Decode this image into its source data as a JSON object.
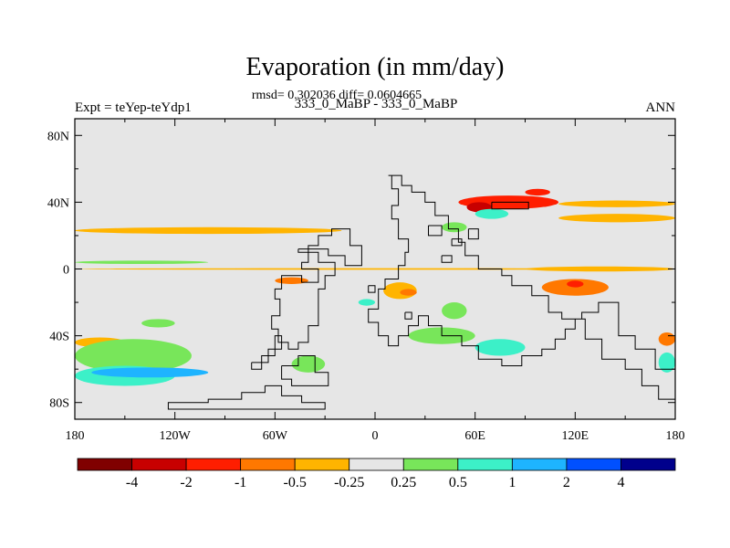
{
  "chart_data": {
    "type": "heatmap",
    "title": "Evaporation (in mm/day)",
    "stats_line": "rmsd= 0.302036 diff= 0.0604665",
    "subtitle_left": "Expt = teYep-teYdp1",
    "subtitle_center": "333_0_MaBP - 333_0_MaBP",
    "subtitle_right": "ANN",
    "x_range": [
      -180,
      180
    ],
    "y_range": [
      -90,
      90
    ],
    "x_ticks": [
      {
        "value": -180,
        "label": "180"
      },
      {
        "value": -120,
        "label": "120W"
      },
      {
        "value": -60,
        "label": "60W"
      },
      {
        "value": 0,
        "label": "0"
      },
      {
        "value": 60,
        "label": "60E"
      },
      {
        "value": 120,
        "label": "120E"
      },
      {
        "value": 180,
        "label": "180"
      }
    ],
    "y_ticks": [
      {
        "value": 80,
        "label": "80N"
      },
      {
        "value": 40,
        "label": "40N"
      },
      {
        "value": 0,
        "label": "0"
      },
      {
        "value": -40,
        "label": "40S"
      },
      {
        "value": -80,
        "label": "80S"
      }
    ],
    "background_color": "#e6e6e6",
    "colorbar": {
      "colors": [
        "#800000",
        "#c80000",
        "#ff1e00",
        "#ff7800",
        "#ffb400",
        "#e6e6e6",
        "#78e65a",
        "#3cf0c8",
        "#1eb4ff",
        "#0050ff",
        "#00008c"
      ],
      "labels": [
        "-4",
        "-2",
        "-1",
        "-0.5",
        "-0.25",
        "0.25",
        "0.5",
        "1",
        "2",
        "4"
      ]
    },
    "anomalies": [
      {
        "lon": [
          -180,
          -20
        ],
        "lat": [
          21,
          25
        ],
        "level": -0.3
      },
      {
        "lon": [
          -180,
          -100
        ],
        "lat": [
          3,
          5
        ],
        "level": 0.3
      },
      {
        "lon": [
          -180,
          180
        ],
        "lat": [
          -0.5,
          0.5
        ],
        "level": -0.4
      },
      {
        "lon": [
          90,
          180
        ],
        "lat": [
          -1.5,
          1.5
        ],
        "level": -0.3
      },
      {
        "lon": [
          50,
          110
        ],
        "lat": [
          36,
          44
        ],
        "level": -1.2
      },
      {
        "lon": [
          55,
          70
        ],
        "lat": [
          34,
          40
        ],
        "level": -2.5
      },
      {
        "lon": [
          90,
          105
        ],
        "lat": [
          44,
          48
        ],
        "level": -1.5
      },
      {
        "lon": [
          110,
          180
        ],
        "lat": [
          37,
          41
        ],
        "level": -0.35
      },
      {
        "lon": [
          110,
          180
        ],
        "lat": [
          28,
          33
        ],
        "level": -0.3
      },
      {
        "lon": [
          100,
          140
        ],
        "lat": [
          -16,
          -6
        ],
        "level": -0.6
      },
      {
        "lon": [
          115,
          125
        ],
        "lat": [
          -11,
          -7
        ],
        "level": -1.5
      },
      {
        "lon": [
          5,
          25
        ],
        "lat": [
          -18,
          -8
        ],
        "level": -0.5
      },
      {
        "lon": [
          15,
          25
        ],
        "lat": [
          -16,
          -12
        ],
        "level": -1.0
      },
      {
        "lon": [
          -60,
          -40
        ],
        "lat": [
          -9,
          -5
        ],
        "level": -0.8
      },
      {
        "lon": [
          -180,
          -150
        ],
        "lat": [
          -47,
          -41
        ],
        "level": -0.5
      },
      {
        "lon": [
          170,
          180
        ],
        "lat": [
          -46,
          -38
        ],
        "level": -0.6
      },
      {
        "lon": [
          -180,
          -110
        ],
        "lat": [
          -62,
          -42
        ],
        "level": 0.4
      },
      {
        "lon": [
          -180,
          -120
        ],
        "lat": [
          -70,
          -58
        ],
        "level": 0.7
      },
      {
        "lon": [
          -170,
          -100
        ],
        "lat": [
          -65,
          -59
        ],
        "level": 1.3
      },
      {
        "lon": [
          -50,
          -30
        ],
        "lat": [
          -62,
          -52
        ],
        "level": 0.4
      },
      {
        "lon": [
          20,
          60
        ],
        "lat": [
          -45,
          -35
        ],
        "level": 0.4
      },
      {
        "lon": [
          60,
          90
        ],
        "lat": [
          -52,
          -42
        ],
        "level": 0.6
      },
      {
        "lon": [
          40,
          55
        ],
        "lat": [
          -30,
          -20
        ],
        "level": 0.4
      },
      {
        "lon": [
          170,
          180
        ],
        "lat": [
          -62,
          -50
        ],
        "level": 0.6
      },
      {
        "lon": [
          -140,
          -120
        ],
        "lat": [
          -35,
          -30
        ],
        "level": 0.3
      },
      {
        "lon": [
          60,
          80
        ],
        "lat": [
          30,
          36
        ],
        "level": 0.5
      },
      {
        "lon": [
          40,
          55
        ],
        "lat": [
          22,
          28
        ],
        "level": 0.4
      },
      {
        "lon": [
          -10,
          0
        ],
        "lat": [
          -22,
          -18
        ],
        "level": 0.5
      }
    ],
    "continent_outlines": [
      [
        [
          -46,
          12
        ],
        [
          -28,
          12
        ],
        [
          -28,
          8
        ],
        [
          -18,
          8
        ],
        [
          -18,
          2
        ],
        [
          -8,
          2
        ],
        [
          -8,
          14
        ],
        [
          -15,
          14
        ],
        [
          -15,
          24
        ],
        [
          -26,
          24
        ],
        [
          -26,
          20
        ],
        [
          -34,
          20
        ],
        [
          -34,
          14
        ],
        [
          -40,
          14
        ],
        [
          -40,
          4
        ],
        [
          -44,
          4
        ],
        [
          -44,
          0
        ],
        [
          -34,
          0
        ],
        [
          -34,
          -8
        ],
        [
          -44,
          -8
        ],
        [
          -44,
          -4
        ],
        [
          -56,
          -4
        ],
        [
          -56,
          -12
        ],
        [
          -60,
          -12
        ],
        [
          -60,
          -18
        ],
        [
          -57,
          -18
        ],
        [
          -57,
          -28
        ],
        [
          -62,
          -28
        ],
        [
          -62,
          -36
        ],
        [
          -58,
          -36
        ],
        [
          -58,
          -44
        ],
        [
          -52,
          -44
        ],
        [
          -52,
          -48
        ],
        [
          -46,
          -48
        ],
        [
          -46,
          -44
        ],
        [
          -40,
          -44
        ],
        [
          -40,
          -34
        ],
        [
          -34,
          -34
        ],
        [
          -34,
          -12
        ],
        [
          -30,
          -12
        ],
        [
          -30,
          -4
        ],
        [
          -24,
          -4
        ],
        [
          -24,
          4
        ],
        [
          -34,
          4
        ],
        [
          -34,
          10
        ],
        [
          -46,
          10
        ],
        [
          -46,
          12
        ]
      ],
      [
        [
          -56,
          -58
        ],
        [
          -46,
          -58
        ],
        [
          -46,
          -52
        ],
        [
          -36,
          -52
        ],
        [
          -36,
          -62
        ],
        [
          -28,
          -62
        ],
        [
          -28,
          -70
        ],
        [
          -50,
          -70
        ],
        [
          -50,
          -66
        ],
        [
          -56,
          -66
        ],
        [
          -56,
          -58
        ]
      ],
      [
        [
          -66,
          -70
        ],
        [
          -56,
          -70
        ],
        [
          -56,
          -76
        ],
        [
          -44,
          -76
        ],
        [
          -44,
          -80
        ],
        [
          -30,
          -80
        ],
        [
          -30,
          -84
        ],
        [
          -124,
          -84
        ],
        [
          -124,
          -80
        ],
        [
          -100,
          -80
        ],
        [
          -100,
          -78
        ],
        [
          -80,
          -78
        ],
        [
          -80,
          -74
        ],
        [
          -66,
          -74
        ],
        [
          -66,
          -70
        ]
      ],
      [
        [
          -74,
          -56
        ],
        [
          -64,
          -56
        ],
        [
          -64,
          -48
        ],
        [
          -56,
          -48
        ],
        [
          -56,
          -40
        ],
        [
          -60,
          -40
        ],
        [
          -60,
          -52
        ],
        [
          -68,
          -52
        ],
        [
          -68,
          -60
        ],
        [
          -74,
          -60
        ],
        [
          -74,
          -56
        ]
      ],
      [
        [
          8,
          56
        ],
        [
          16,
          56
        ],
        [
          16,
          50
        ],
        [
          22,
          50
        ],
        [
          22,
          46
        ],
        [
          30,
          46
        ],
        [
          30,
          40
        ],
        [
          36,
          40
        ],
        [
          36,
          32
        ],
        [
          44,
          32
        ],
        [
          44,
          24
        ],
        [
          50,
          24
        ],
        [
          50,
          16
        ],
        [
          54,
          16
        ],
        [
          54,
          8
        ],
        [
          62,
          8
        ],
        [
          62,
          0
        ],
        [
          76,
          0
        ],
        [
          76,
          -4
        ],
        [
          82,
          -4
        ],
        [
          82,
          -10
        ],
        [
          94,
          -10
        ],
        [
          94,
          -16
        ],
        [
          104,
          -16
        ],
        [
          104,
          -26
        ],
        [
          112,
          -26
        ],
        [
          112,
          -30
        ],
        [
          124,
          -30
        ],
        [
          124,
          -26
        ],
        [
          134,
          -26
        ],
        [
          134,
          -20
        ],
        [
          146,
          -20
        ],
        [
          146,
          -40
        ],
        [
          156,
          -40
        ],
        [
          156,
          -48
        ],
        [
          168,
          -48
        ],
        [
          168,
          -60
        ],
        [
          180,
          -60
        ],
        [
          180,
          -78
        ],
        [
          170,
          -78
        ],
        [
          170,
          -70
        ],
        [
          160,
          -70
        ],
        [
          160,
          -60
        ],
        [
          150,
          -60
        ],
        [
          150,
          -54
        ],
        [
          136,
          -54
        ],
        [
          136,
          -42
        ],
        [
          126,
          -42
        ],
        [
          126,
          -30
        ],
        [
          120,
          -30
        ],
        [
          120,
          -36
        ],
        [
          114,
          -36
        ],
        [
          114,
          -42
        ],
        [
          108,
          -42
        ],
        [
          108,
          -48
        ],
        [
          100,
          -48
        ],
        [
          100,
          -52
        ],
        [
          88,
          -52
        ],
        [
          88,
          -58
        ],
        [
          76,
          -58
        ],
        [
          76,
          -54
        ],
        [
          62,
          -54
        ],
        [
          62,
          -46
        ],
        [
          52,
          -46
        ],
        [
          52,
          -40
        ],
        [
          40,
          -40
        ],
        [
          40,
          -34
        ],
        [
          32,
          -34
        ],
        [
          32,
          -28
        ],
        [
          26,
          -28
        ],
        [
          26,
          -34
        ],
        [
          20,
          -34
        ],
        [
          20,
          -40
        ],
        [
          14,
          -40
        ],
        [
          14,
          -46
        ],
        [
          8,
          -46
        ],
        [
          8,
          -40
        ],
        [
          2,
          -40
        ],
        [
          2,
          -32
        ],
        [
          -4,
          -32
        ],
        [
          -4,
          -24
        ],
        [
          2,
          -24
        ],
        [
          2,
          -12
        ],
        [
          6,
          -12
        ],
        [
          6,
          -6
        ],
        [
          14,
          -6
        ],
        [
          14,
          2
        ],
        [
          18,
          2
        ],
        [
          18,
          10
        ],
        [
          20,
          10
        ],
        [
          20,
          18
        ],
        [
          14,
          18
        ],
        [
          14,
          30
        ],
        [
          10,
          30
        ],
        [
          10,
          38
        ],
        [
          14,
          38
        ],
        [
          14,
          48
        ],
        [
          10,
          48
        ],
        [
          10,
          56
        ],
        [
          8,
          56
        ]
      ],
      [
        [
          70,
          40
        ],
        [
          92,
          40
        ],
        [
          92,
          36
        ],
        [
          70,
          36
        ],
        [
          70,
          40
        ]
      ],
      [
        [
          32,
          26
        ],
        [
          40,
          26
        ],
        [
          40,
          20
        ],
        [
          32,
          20
        ],
        [
          32,
          26
        ]
      ],
      [
        [
          40,
          8
        ],
        [
          46,
          8
        ],
        [
          46,
          4
        ],
        [
          40,
          4
        ],
        [
          40,
          8
        ]
      ],
      [
        [
          56,
          24
        ],
        [
          62,
          24
        ],
        [
          62,
          18
        ],
        [
          56,
          18
        ],
        [
          56,
          24
        ]
      ],
      [
        [
          18,
          -26
        ],
        [
          22,
          -26
        ],
        [
          22,
          -30
        ],
        [
          18,
          -30
        ],
        [
          18,
          -26
        ]
      ],
      [
        [
          -4,
          -10
        ],
        [
          0,
          -10
        ],
        [
          0,
          -14
        ],
        [
          -4,
          -14
        ],
        [
          -4,
          -10
        ]
      ],
      [
        [
          46,
          18
        ],
        [
          52,
          18
        ],
        [
          52,
          14
        ],
        [
          46,
          14
        ],
        [
          46,
          18
        ]
      ]
    ]
  }
}
